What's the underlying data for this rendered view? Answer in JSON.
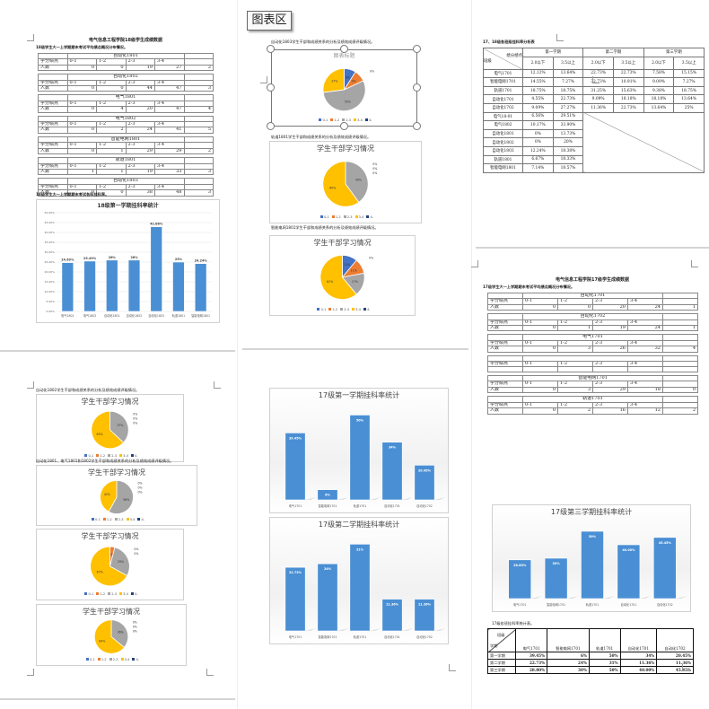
{
  "chart_area_tooltip": "图表区",
  "page18": {
    "title": "电气信息工程学院18级学生成绩数据",
    "subtitle": "18级学生大一上学期期末考试平均绩点概况分布情况。",
    "header": [
      "学分绩点",
      "0-1",
      "1-2",
      "2-3",
      "3-4",
      ""
    ],
    "row_label": "人数",
    "tables": [
      {
        "name": "自动化1801",
        "counts": [
          0,
          0,
          19,
          27,
          2
        ]
      },
      {
        "name": "自动化1802",
        "counts": [
          0,
          0,
          44,
          47,
          3
        ]
      },
      {
        "name": "电气1801",
        "counts": [
          0,
          4,
          20,
          47,
          4
        ]
      },
      {
        "name": "电气1802",
        "counts": [
          0,
          2,
          24,
          41,
          5
        ]
      },
      {
        "name": "智能电网1801",
        "counts": [
          0,
          1,
          29,
          29,
          2
        ]
      },
      {
        "name": "轨道1801",
        "counts": [
          1,
          1,
          19,
          33,
          3
        ]
      },
      {
        "name": "自动化1803",
        "counts": [
          0,
          0,
          38,
          48,
          3
        ]
      }
    ],
    "fail_text": "18级学生大一上学期期末考试各科挂科率。"
  },
  "page17": {
    "title": "电气信息工程学院17级学生成绩数据",
    "subtitle": "17级学生大一上学期期末考试平均绩点概况分布情况。",
    "header": [
      "学分绩点",
      "0-1",
      "1-2",
      "2-3",
      "3-4",
      ""
    ],
    "row_label": "人数",
    "tables": [
      {
        "name": "自动化1701",
        "counts": [
          0,
          0,
          20,
          24,
          1
        ]
      },
      {
        "name": "自动化1702",
        "counts": [
          0,
          1,
          19,
          24,
          1
        ]
      },
      {
        "name": "电气1701",
        "counts": [
          0,
          3,
          26,
          32,
          4
        ]
      },
      {
        "name": "",
        "counts": [
          "",
          "",
          "",
          "",
          ""
        ],
        "blank": true
      },
      {
        "name": "智能电网1701",
        "counts": [
          0,
          3,
          29,
          18,
          0
        ]
      },
      {
        "name": "轨道1701",
        "counts": [
          0,
          2,
          16,
          12,
          2
        ]
      }
    ],
    "summary_caption": "17级各班挂科率统计表。",
    "summary_corner": [
      "班级",
      "学期"
    ],
    "summary_cols": [
      "电气1701",
      "智能电网1701",
      "轨道1701",
      "自动化1701",
      "自动化1702"
    ],
    "summary_rows": [
      {
        "term": "第一学期",
        "vals": [
          "39.45%",
          "6%",
          "50%",
          "34%",
          "20.45%"
        ]
      },
      {
        "term": "第二学期",
        "vals": [
          "22.73%",
          "24%",
          "31%",
          "11.36%",
          "11.36%"
        ]
      },
      {
        "term": "第三学期",
        "vals": [
          "28.80%",
          "30%",
          "50%",
          "40.00%",
          "45.45%"
        ]
      }
    ]
  },
  "rate_table": {
    "caption": "17、18级各班级挂科率分析表",
    "corner": [
      "绩分绩点",
      "班级"
    ],
    "terms": [
      "第一学期",
      "第二学期",
      "第三学期"
    ],
    "subcols": [
      "2.0以下",
      "3.5以上"
    ],
    "rows": [
      {
        "cls": "电气1701",
        "vals": [
          "12.12%",
          "13.64%",
          "22.73%",
          "22.73%",
          "7.58%",
          "15.15%"
        ]
      },
      {
        "cls": "智能电网1701",
        "vals": [
          "14.55%",
          "7.27%",
          "32.73%",
          "10.91%",
          "9.09%",
          "7.27%"
        ]
      },
      {
        "cls": "轨道1701",
        "vals": [
          "18.75%",
          "18.75%",
          "31.25%",
          "15.63%",
          "9.38%",
          "18.75%"
        ]
      },
      {
        "cls": "自动化1701",
        "vals": [
          "4.55%",
          "22.73%",
          "9.09%",
          "18.18%",
          "18.18%",
          "13.64%"
        ]
      },
      {
        "cls": "自动化1702",
        "vals": [
          "9.09%",
          "27.27%",
          "11.36%",
          "22.73%",
          "13.64%",
          "25%"
        ]
      },
      {
        "cls": "电气18-01",
        "vals": [
          "6.56%",
          "29.51%"
        ]
      },
      {
        "cls": "电气1802",
        "vals": [
          "10.17%",
          "33.90%"
        ]
      },
      {
        "cls": "自动化1801",
        "vals": [
          "0%",
          "13.73%"
        ]
      },
      {
        "cls": "自动化1802",
        "vals": [
          "0%",
          "20%"
        ]
      },
      {
        "cls": "自动化1803",
        "vals": [
          "12.24%",
          "18.38%"
        ]
      },
      {
        "cls": "轨道1801",
        "vals": [
          "6.67%",
          "18.33%"
        ]
      },
      {
        "cls": "智能电网1801",
        "vals": [
          "7.14%",
          "18.57%"
        ]
      }
    ]
  },
  "pie_texts": {
    "t1": "自动化1803学生干部和成绩关系的分析及绩效成绩评级情况。",
    "t2": "轨道1801学生干部和成绩关系的分析及绩效成绩评级情况。",
    "t3": "智能电网1801学生干部和成绩关系的分析及绩效成绩评级情况。",
    "t4": "自动化1802学生干部和成绩关系的分析及绩效成绩评级情况。",
    "t5": "自动化1801、电气1801和1802学生干部和成绩关系的分析及绩效成绩评级情况。"
  },
  "chart_data": [
    {
      "id": "bar18",
      "type": "bar",
      "title": "18级第一学期挂科率统计",
      "categories": [
        "电气1801",
        "电气1802",
        "自动化1801",
        "自动化1802",
        "自动化1803",
        "轨道1801",
        "智能电网1801"
      ],
      "values": [
        24.69,
        25.49,
        26,
        26,
        42.86,
        25,
        24.24
      ],
      "labels": [
        "24.69%",
        "25.49%",
        "26%",
        "26%",
        "42.86%",
        "25%",
        "24.24%"
      ],
      "ylim": [
        0,
        50
      ],
      "yticks": [
        "0.00%",
        "5.00%",
        "10.00%",
        "15.00%",
        "20.00%",
        "25.00%",
        "30.00%",
        "35.00%",
        "40.00%",
        "45.00%",
        "50.00%"
      ],
      "grid": true
    },
    {
      "id": "bar17a",
      "type": "bar",
      "title": "17级第一学期挂科率统计",
      "categories": [
        "电气1701",
        "智能电网1701",
        "轨道1701",
        "自动化1701",
        "自动化1702"
      ],
      "values": [
        39.45,
        6,
        50,
        34,
        20.45
      ],
      "labels": [
        "39.45%",
        "6%",
        "50%",
        "34%",
        "20.45%"
      ],
      "ylim": [
        0,
        55
      ],
      "grid": false
    },
    {
      "id": "bar17b",
      "type": "bar",
      "title": "17级第二学期挂科率统计",
      "categories": [
        "电气1701",
        "智能电网1701",
        "轨道1701",
        "自动化1701",
        "自动化1702"
      ],
      "values": [
        22.73,
        24,
        31,
        11.36,
        11.36
      ],
      "labels": [
        "22.73%",
        "24%",
        "31%",
        "11.36%",
        "11.36%"
      ],
      "ylim": [
        0,
        34
      ],
      "grid": false
    },
    {
      "id": "bar17c",
      "type": "bar",
      "title": "17级第三学期挂科率统计",
      "categories": [
        "电气1701",
        "智能电网1701",
        "轨道1701",
        "自动化1701",
        "自动化1702"
      ],
      "values": [
        28.8,
        30,
        50,
        40,
        45.45
      ],
      "labels": [
        "28.80%",
        "30%",
        "50%",
        "40.00%",
        "45.45%"
      ],
      "ylim": [
        0,
        56
      ],
      "grid": false
    },
    {
      "id": "pie1",
      "type": "pie",
      "title": "图表标题",
      "categories": [
        "0-1",
        "1-2",
        "2-3",
        "3-4",
        "4-"
      ],
      "values": [
        9,
        9,
        55,
        27,
        0
      ],
      "labels": [
        "9%",
        "9%",
        "55%",
        "27%",
        "0%"
      ]
    },
    {
      "id": "pie2",
      "type": "pie",
      "title": "学生干部学习情况",
      "categories": [
        "0-1",
        "1-2",
        "2-3",
        "3-4",
        "4-"
      ],
      "values": [
        0,
        0,
        40,
        60,
        0
      ],
      "labels": [
        "0%",
        "0%",
        "40%",
        "60%",
        "0%"
      ]
    },
    {
      "id": "pie3",
      "type": "pie",
      "title": "学生干部学习情况",
      "categories": [
        "0-1",
        "1-2",
        "2-3",
        "3-4",
        "4-"
      ],
      "values": [
        11,
        11,
        17,
        61,
        0
      ],
      "labels": [
        "11%",
        "11%",
        "17%",
        "61%",
        "0%"
      ]
    },
    {
      "id": "pie4",
      "type": "pie",
      "title": "学生干部学习情况",
      "categories": [
        "0-1",
        "1-2",
        "2-3",
        "3-4",
        "4-"
      ],
      "values": [
        0,
        0,
        37,
        63,
        0
      ],
      "labels": [
        "0%",
        "0%",
        "37%",
        "63%",
        "0%"
      ]
    },
    {
      "id": "pie5",
      "type": "pie",
      "title": "学生干部学习情况",
      "categories": [
        "0-1",
        "1-2",
        "2-3",
        "3-4",
        "4-"
      ],
      "values": [
        0,
        0,
        58,
        42,
        0
      ],
      "labels": [
        "0%",
        "0%",
        "58%",
        "42%",
        "0%"
      ]
    },
    {
      "id": "pie6",
      "type": "pie",
      "title": "学生干部学习情况",
      "categories": [
        "0-1",
        "1-2",
        "2-3",
        "3-4",
        "4-"
      ],
      "values": [
        0,
        4,
        29,
        67,
        0
      ],
      "labels": [
        "0%",
        "4%",
        "29%",
        "67%",
        "0%"
      ]
    },
    {
      "id": "pie7",
      "type": "pie",
      "title": "学生干部学习情况",
      "categories": [
        "0-1",
        "1-2",
        "2-3",
        "3-4",
        "4-"
      ],
      "values": [
        0,
        0,
        36,
        64,
        0
      ],
      "labels": [
        "0%",
        "0%",
        "36%",
        "64%",
        "0%"
      ]
    }
  ],
  "colors": {
    "bar": "#4a8fd4",
    "pie": [
      "#4472c4",
      "#ed7d31",
      "#a5a5a5",
      "#ffc000",
      "#264478"
    ]
  }
}
